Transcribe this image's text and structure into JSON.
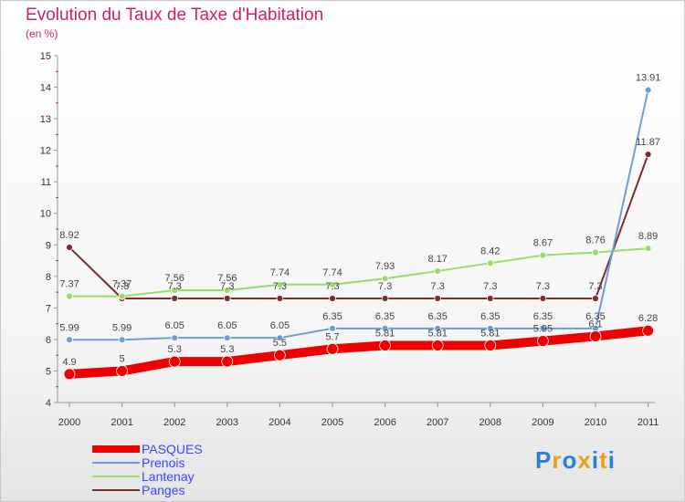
{
  "title": "Evolution du Taux de Taxe d'Habitation",
  "unit_label": "(en %)",
  "logo": {
    "text": "Proxiti",
    "letters": [
      "P",
      "r",
      "o",
      "x",
      "i",
      "t",
      "i"
    ],
    "colors": [
      "#2b7fd8",
      "#e8a020",
      "#2b7fd8",
      "#e8a020",
      "#2b7fd8",
      "#e8a020",
      "#2b7fd8"
    ]
  },
  "chart_data": {
    "type": "line",
    "x": [
      "2000",
      "2001",
      "2002",
      "2003",
      "2004",
      "2005",
      "2006",
      "2007",
      "2008",
      "2009",
      "2010",
      "2011"
    ],
    "ylim": [
      4,
      15
    ],
    "yticks": [
      "4",
      "5",
      "6",
      "7",
      "8",
      "9",
      "10",
      "11",
      "12",
      "13",
      "14",
      "15"
    ],
    "grid": false,
    "series": [
      {
        "name": "PASQUES",
        "color": "#ee0000",
        "width": 10,
        "values": [
          4.9,
          5,
          5.3,
          5.3,
          5.5,
          5.7,
          5.81,
          5.81,
          5.81,
          5.95,
          6.1,
          6.28
        ],
        "labels": [
          "4.9",
          "5",
          "5.3",
          "5.3",
          "5.5",
          "5.7",
          "5.81",
          "5.81",
          "5.81",
          "5.95",
          "6.1",
          "6.28"
        ]
      },
      {
        "name": "Prenois",
        "color": "#6e9ed0",
        "width": 2,
        "values": [
          5.99,
          5.99,
          6.05,
          6.05,
          6.05,
          6.35,
          6.35,
          6.35,
          6.35,
          6.35,
          6.35,
          13.91
        ],
        "labels": [
          "5.99",
          "5.99",
          "6.05",
          "6.05",
          "6.05",
          "6.35",
          "6.35",
          "6.35",
          "6.35",
          "6.35",
          "6.35",
          "13.91"
        ]
      },
      {
        "name": "Lantenay",
        "color": "#99dd66",
        "width": 2,
        "values": [
          7.37,
          7.37,
          7.56,
          7.56,
          7.74,
          7.74,
          7.93,
          8.17,
          8.42,
          8.67,
          8.76,
          8.89
        ],
        "labels": [
          "7.37",
          "7.37",
          "7.56",
          "7.56",
          "7.74",
          "7.74",
          "7.93",
          "8.17",
          "8.42",
          "8.67",
          "8.76",
          "8.89"
        ]
      },
      {
        "name": "Panges",
        "color": "#7a2e2e",
        "width": 2,
        "values": [
          8.92,
          7.3,
          7.3,
          7.3,
          7.3,
          7.3,
          7.3,
          7.3,
          7.3,
          7.3,
          7.3,
          11.87
        ],
        "labels": [
          "8.92",
          "7.3",
          "7.3",
          "7.3",
          "7.3",
          "7.3",
          "7.3",
          "7.3",
          "7.3",
          "7.3",
          "7.3",
          "11.87"
        ]
      }
    ]
  }
}
